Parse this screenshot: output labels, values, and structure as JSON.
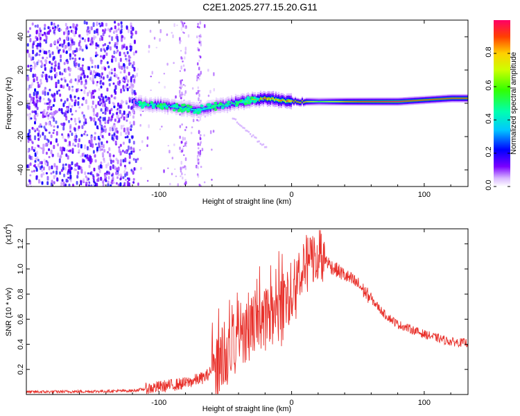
{
  "title": "C2E1.2025.277.15.20.G11",
  "chart_data": [
    {
      "type": "heatmap",
      "name": "spectrogram",
      "xlabel": "Height of straight line (km)",
      "ylabel": "Frequency (Hz)",
      "xlim": [
        -200,
        133
      ],
      "ylim": [
        -50,
        50
      ],
      "x_ticks": [
        -100,
        0,
        100
      ],
      "y_ticks": [
        -40,
        -20,
        0,
        20,
        40
      ],
      "colorbar": {
        "label": "Normalized spectral amplitude",
        "range": [
          0,
          1
        ],
        "ticks": [
          "0.0",
          "0.2",
          "0.4",
          "0.6",
          "0.8"
        ],
        "tick_values": [
          0.0,
          0.2,
          0.4,
          0.6,
          0.8
        ]
      },
      "ridge": [
        {
          "x": -118,
          "f": 0,
          "amp": 0.35
        },
        {
          "x": -110,
          "f": -1,
          "amp": 0.4
        },
        {
          "x": -100,
          "f": -1,
          "amp": 0.42
        },
        {
          "x": -90,
          "f": -2,
          "amp": 0.42
        },
        {
          "x": -80,
          "f": -3,
          "amp": 0.4
        },
        {
          "x": -70,
          "f": -4,
          "amp": 0.4
        },
        {
          "x": -60,
          "f": -2,
          "amp": 0.42
        },
        {
          "x": -50,
          "f": -1,
          "amp": 0.45
        },
        {
          "x": -40,
          "f": 1,
          "amp": 0.55
        },
        {
          "x": -30,
          "f": 2,
          "amp": 0.7
        },
        {
          "x": -20,
          "f": 3,
          "amp": 0.9
        },
        {
          "x": -10,
          "f": 2,
          "amp": 0.8
        },
        {
          "x": 0,
          "f": 1,
          "amp": 0.9
        },
        {
          "x": 10,
          "f": 1,
          "amp": 0.85
        },
        {
          "x": 20,
          "f": 1,
          "amp": 0.6
        },
        {
          "x": 40,
          "f": 1,
          "amp": 0.85
        },
        {
          "x": 60,
          "f": 1,
          "amp": 0.95
        },
        {
          "x": 80,
          "f": 1,
          "amp": 1.0
        },
        {
          "x": 100,
          "f": 2,
          "amp": 0.9
        },
        {
          "x": 120,
          "f": 3,
          "amp": 0.95
        },
        {
          "x": 133,
          "f": 3,
          "amp": 0.95
        }
      ]
    },
    {
      "type": "line",
      "name": "snr",
      "xlabel": "Height of straight line (km)",
      "ylabel": "SNR (10 * v/v)",
      "scale_label": "(x10",
      "scale_exp": "4",
      "xlim": [
        -200,
        133
      ],
      "ylim": [
        0,
        1.32
      ],
      "x_ticks": [
        -100,
        0,
        100
      ],
      "y_ticks": [
        0.2,
        0.4,
        0.6,
        0.8,
        1.0,
        1.2
      ],
      "y_tick_labels": [
        "0.2",
        "0.4",
        "0.6",
        "0.8",
        "1.0",
        "1.2"
      ],
      "color": "#e8302a",
      "envelope": [
        {
          "x": -200,
          "y": 0.02
        },
        {
          "x": -150,
          "y": 0.025
        },
        {
          "x": -120,
          "y": 0.03
        },
        {
          "x": -100,
          "y": 0.06
        },
        {
          "x": -80,
          "y": 0.09
        },
        {
          "x": -65,
          "y": 0.14
        },
        {
          "x": -55,
          "y": 0.25
        },
        {
          "x": -45,
          "y": 0.38
        },
        {
          "x": -35,
          "y": 0.52
        },
        {
          "x": -25,
          "y": 0.6
        },
        {
          "x": -15,
          "y": 0.66
        },
        {
          "x": -5,
          "y": 0.75
        },
        {
          "x": 5,
          "y": 0.92
        },
        {
          "x": 15,
          "y": 1.08
        },
        {
          "x": 22,
          "y": 1.12
        },
        {
          "x": 30,
          "y": 1.02
        },
        {
          "x": 40,
          "y": 0.95
        },
        {
          "x": 50,
          "y": 0.88
        },
        {
          "x": 60,
          "y": 0.76
        },
        {
          "x": 70,
          "y": 0.64
        },
        {
          "x": 80,
          "y": 0.56
        },
        {
          "x": 90,
          "y": 0.52
        },
        {
          "x": 100,
          "y": 0.48
        },
        {
          "x": 110,
          "y": 0.45
        },
        {
          "x": 120,
          "y": 0.42
        },
        {
          "x": 133,
          "y": 0.41
        }
      ]
    }
  ]
}
